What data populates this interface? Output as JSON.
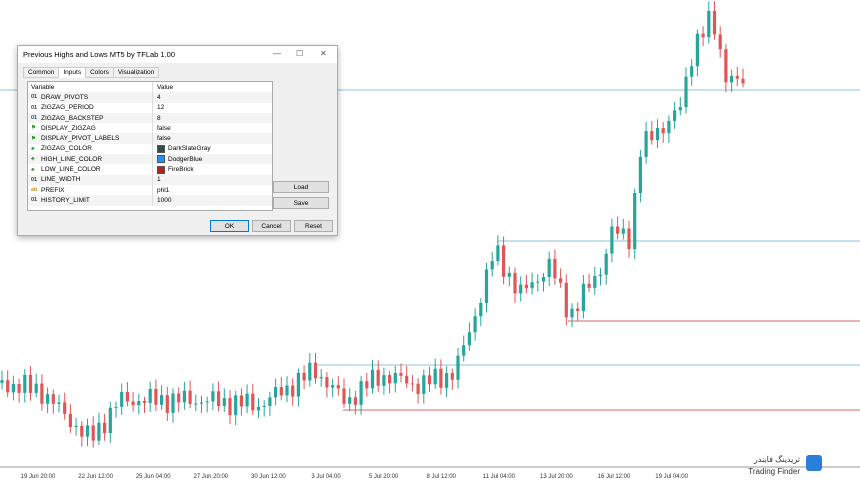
{
  "dialog": {
    "title": "Previous Highs and Lows MT5 by TFLab 1.00",
    "tabs": [
      "Common",
      "Inputs",
      "Colors",
      "Visualization"
    ],
    "table": {
      "header": [
        "Variable",
        "Value"
      ],
      "rows": [
        {
          "icon": "01",
          "variable": "DRAW_PIVOTS",
          "value": "4"
        },
        {
          "icon": "01",
          "variable": "ZIGZAG_PERIOD",
          "value": "12"
        },
        {
          "icon": "01",
          "variable": "ZIGZAG_BACKSTEP",
          "value": "8"
        },
        {
          "variable": "DISPLAY_ZIGZAG",
          "value": "false"
        },
        {
          "variable": "DISPLAY_PIVOT_LABELS",
          "value": "false"
        },
        {
          "variable": "ZIGZAG_COLOR",
          "value": "DarkSlateGray",
          "swatch": "#2f4f4f"
        },
        {
          "variable": "HIGH_LINE_COLOR",
          "value": "DodgerBlue",
          "swatch": "#1e90ff"
        },
        {
          "variable": "LOW_LINE_COLOR",
          "value": "FireBrick",
          "swatch": "#b22222"
        },
        {
          "icon": "01",
          "variable": "LINE_WIDTH",
          "value": "1"
        },
        {
          "variable": "PREFIX",
          "value": "phl1"
        },
        {
          "icon": "01",
          "variable": "HISTORY_LIMIT",
          "value": "1000"
        }
      ]
    },
    "side_buttons": [
      "Load",
      "Save"
    ],
    "buttons": [
      "OK",
      "Cancel",
      "Reset"
    ]
  },
  "chart": {
    "x_labels": [
      "19 Jun 20:00",
      "22 Jun 12:00",
      "25 Jun 04:00",
      "27 Jun 20:00",
      "30 Jun 12:00",
      "3 Jul 04:00",
      "5 Jul 20:00",
      "8 Jul 12:00",
      "11 Jul 04:00",
      "13 Jul 20:00",
      "16 Jul 12:00",
      "19 Jul 04:00"
    ]
  },
  "logo": {
    "name_fa": "تریدینگ فایندر",
    "name": "Trading Finder"
  }
}
